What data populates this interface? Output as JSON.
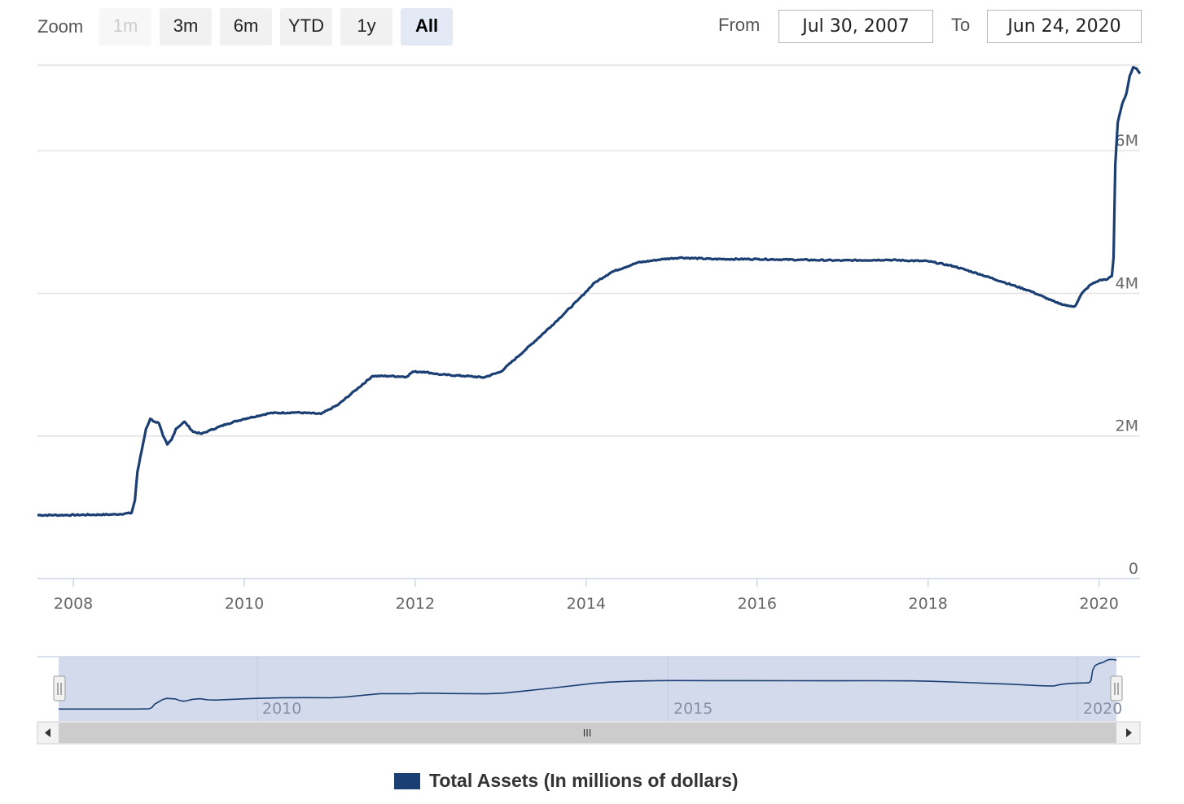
{
  "range_selector": {
    "zoom_label": "Zoom",
    "buttons": [
      {
        "label": "1m",
        "state": "disabled"
      },
      {
        "label": "3m",
        "state": "normal"
      },
      {
        "label": "6m",
        "state": "normal"
      },
      {
        "label": "YTD",
        "state": "normal"
      },
      {
        "label": "1y",
        "state": "normal"
      },
      {
        "label": "All",
        "state": "selected"
      }
    ],
    "from_label": "From",
    "from_value": "Jul 30, 2007",
    "to_label": "To",
    "to_value": "Jun 24, 2020"
  },
  "navigator": {
    "labels": [
      "2010",
      "2015",
      "2020"
    ],
    "scroll_handle": "III"
  },
  "legend": {
    "label": "Total Assets (In millions of dollars)",
    "color": "#1b3f73"
  },
  "colors": {
    "series": "#1b3f73",
    "navigator_mask": "#d0d8ea",
    "scrollbar": "#cccccc"
  },
  "icons": {
    "scroll_left": "left-arrow-icon",
    "scroll_right": "right-arrow-icon",
    "handle": "navigator-handle-icon"
  },
  "chart_data": {
    "type": "line",
    "xlabel": "",
    "ylabel": "",
    "xlim": [
      2007.58,
      2020.48
    ],
    "ylim": [
      0,
      7200000
    ],
    "x_ticks": [
      "2008",
      "2010",
      "2012",
      "2014",
      "2016",
      "2018",
      "2020"
    ],
    "y_ticks": [
      "0",
      "2M",
      "4M",
      "6M"
    ],
    "grid": true,
    "legend_position": "bottom-center",
    "series": [
      {
        "name": "Total Assets (In millions of dollars)",
        "x": [
          2007.58,
          2007.9,
          2008.2,
          2008.5,
          2008.68,
          2008.72,
          2008.75,
          2008.8,
          2008.85,
          2008.9,
          2008.95,
          2009.0,
          2009.05,
          2009.1,
          2009.15,
          2009.2,
          2009.3,
          2009.4,
          2009.5,
          2009.6,
          2009.8,
          2010.0,
          2010.3,
          2010.6,
          2010.9,
          2011.1,
          2011.3,
          2011.5,
          2011.7,
          2011.9,
          2011.97,
          2012.1,
          2012.3,
          2012.6,
          2012.8,
          2013.0,
          2013.3,
          2013.6,
          2013.9,
          2014.1,
          2014.3,
          2014.6,
          2014.9,
          2015.1,
          2015.5,
          2016.0,
          2016.5,
          2017.0,
          2017.5,
          2018.0,
          2018.3,
          2018.6,
          2018.9,
          2019.2,
          2019.5,
          2019.65,
          2019.72,
          2019.8,
          2019.9,
          2020.0,
          2020.1,
          2020.15,
          2020.17,
          2020.19,
          2020.22,
          2020.27,
          2020.32,
          2020.36,
          2020.4,
          2020.44,
          2020.48
        ],
        "y": [
          890000,
          890000,
          895000,
          900000,
          920000,
          1100000,
          1500000,
          1800000,
          2100000,
          2240000,
          2200000,
          2180000,
          2000000,
          1880000,
          1950000,
          2100000,
          2200000,
          2060000,
          2030000,
          2080000,
          2170000,
          2240000,
          2320000,
          2330000,
          2310000,
          2440000,
          2640000,
          2840000,
          2840000,
          2830000,
          2900000,
          2900000,
          2860000,
          2840000,
          2820000,
          2900000,
          3220000,
          3550000,
          3900000,
          4150000,
          4300000,
          4430000,
          4480000,
          4500000,
          4480000,
          4480000,
          4470000,
          4460000,
          4470000,
          4450000,
          4380000,
          4270000,
          4150000,
          4030000,
          3870000,
          3820000,
          3820000,
          4000000,
          4120000,
          4180000,
          4200000,
          4240000,
          4500000,
          5800000,
          6400000,
          6650000,
          6800000,
          7050000,
          7170000,
          7150000,
          7080000
        ]
      }
    ]
  }
}
